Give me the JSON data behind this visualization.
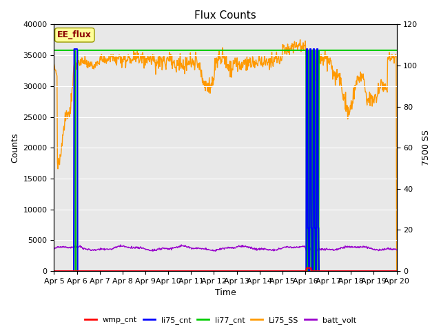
{
  "title": "Flux Counts",
  "xlabel": "Time",
  "ylabel_left": "Counts",
  "ylabel_right": "7500 SS",
  "annotation": "EE_flux",
  "ylim_left": [
    0,
    40000
  ],
  "ylim_right": [
    0,
    120
  ],
  "background_color": "#e8e8e8",
  "fig_color": "#ffffff",
  "xtick_labels": [
    "Apr 5",
    "Apr 6",
    "Apr 7",
    "Apr 8",
    "Apr 9",
    "Apr 10",
    "Apr 11",
    "Apr 12",
    "Apr 13",
    "Apr 14",
    "Apr 15",
    "Apr 16",
    "Apr 17",
    "Apr 18",
    "Apr 19",
    "Apr 20"
  ],
  "yticks_left": [
    0,
    5000,
    10000,
    15000,
    20000,
    25000,
    30000,
    35000,
    40000
  ],
  "yticks_right": [
    0,
    20,
    40,
    60,
    80,
    100,
    120
  ],
  "colors": {
    "wmp_cnt": "#ff0000",
    "li75_cnt": "#0000ff",
    "li77_cnt": "#00cc00",
    "Li75_SS": "#ff9900",
    "batt_volt": "#9900cc"
  },
  "legend_labels": [
    "wmp_cnt",
    "li75_cnt",
    "li77_cnt",
    "Li75_SS",
    "batt_volt"
  ]
}
